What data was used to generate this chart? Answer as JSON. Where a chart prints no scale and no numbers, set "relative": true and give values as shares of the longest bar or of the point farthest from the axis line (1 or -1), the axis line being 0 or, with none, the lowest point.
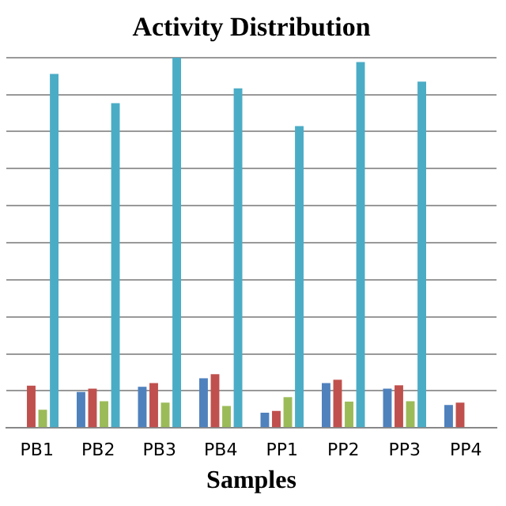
{
  "chart_data": {
    "type": "bar",
    "title": "Activity Distribution",
    "xlabel": "Samples",
    "relative": true,
    "grid": "y",
    "legend": false,
    "categories": [
      "PB1",
      "PB2",
      "PB3",
      "PB4",
      "PP1",
      "PP2",
      "PP3",
      "PP4"
    ],
    "series": [
      {
        "color": "#4f81bd",
        "values": [
          null,
          0.097,
          0.111,
          0.134,
          0.041,
          0.121,
          0.106,
          0.062
        ]
      },
      {
        "color": "#c0504d",
        "values": [
          0.114,
          0.106,
          0.121,
          0.145,
          0.046,
          0.13,
          0.115,
          0.068
        ]
      },
      {
        "color": "#9bbb59",
        "values": [
          0.049,
          0.072,
          0.068,
          0.059,
          0.083,
          0.071,
          0.072,
          null
        ]
      },
      {
        "color": "#4bacc6",
        "values": [
          0.956,
          0.877,
          1,
          0.917,
          0.815,
          0.988,
          0.935,
          null
        ]
      }
    ]
  }
}
